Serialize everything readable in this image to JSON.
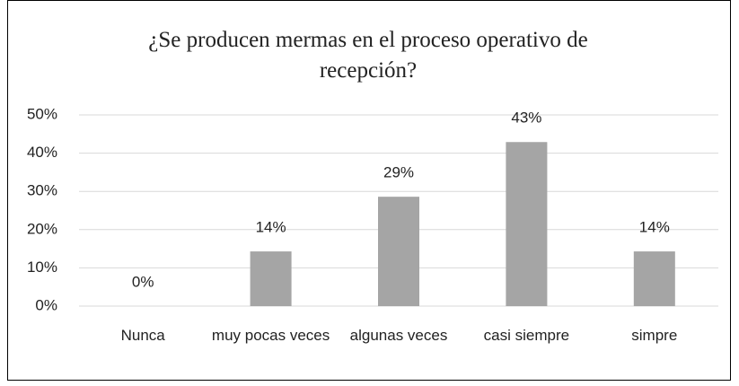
{
  "chart_data": {
    "type": "bar",
    "title": "¿Se producen mermas en el proceso operativo de recepción?",
    "categories": [
      "Nunca",
      "muy pocas veces",
      "algunas veces",
      "casi siempre",
      "simpre"
    ],
    "values": [
      0,
      14.3,
      28.6,
      42.9,
      14.3
    ],
    "value_labels": [
      "0%",
      "14%",
      "29%",
      "43%",
      "14%"
    ],
    "color": "#a5a5a5",
    "ylim": [
      0,
      50
    ],
    "yticks": [
      {
        "value": 0,
        "label": "0%"
      },
      {
        "value": 10,
        "label": "10%"
      },
      {
        "value": 20,
        "label": "20%"
      },
      {
        "value": 30,
        "label": "30%"
      },
      {
        "value": 40,
        "label": "40%"
      },
      {
        "value": 50,
        "label": "50%"
      }
    ],
    "grid": true
  }
}
